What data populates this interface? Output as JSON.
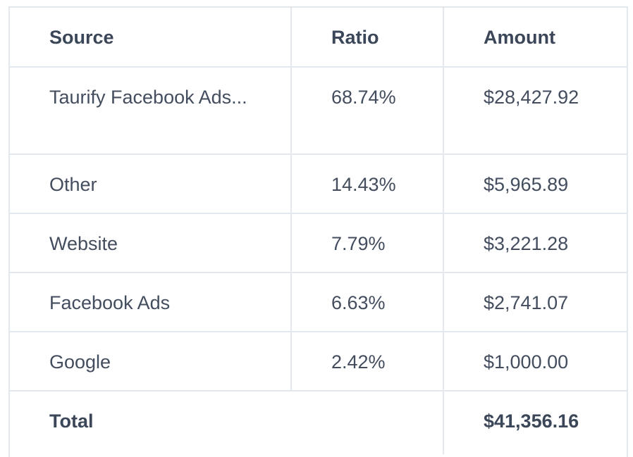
{
  "table": {
    "headers": {
      "source": "Source",
      "ratio": "Ratio",
      "amount": "Amount"
    },
    "rows": [
      {
        "source": "Taurify Facebook Ads...",
        "ratio": "68.74%",
        "amount": "$28,427.92"
      },
      {
        "source": "Other",
        "ratio": "14.43%",
        "amount": "$5,965.89"
      },
      {
        "source": "Website",
        "ratio": "7.79%",
        "amount": "$3,221.28"
      },
      {
        "source": "Facebook Ads",
        "ratio": "6.63%",
        "amount": "$2,741.07"
      },
      {
        "source": "Google",
        "ratio": "2.42%",
        "amount": "$1,000.00"
      }
    ],
    "total": {
      "label": "Total",
      "amount": "$41,356.16"
    }
  },
  "colors": {
    "border": "#e3e8ef",
    "text": "#434d5e",
    "header_text": "#3b4759"
  }
}
